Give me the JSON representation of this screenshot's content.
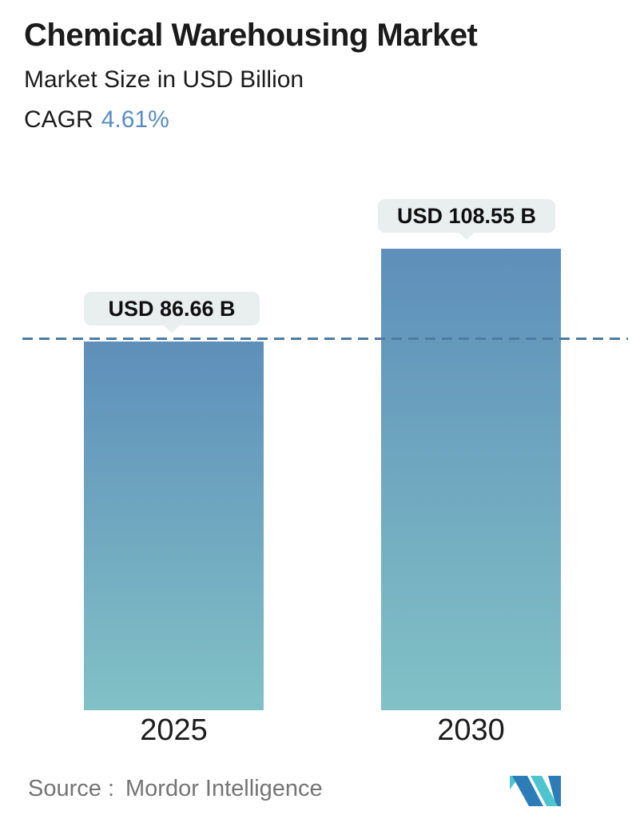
{
  "header": {
    "title": "Chemical Warehousing Market",
    "subtitle": "Market Size in USD Billion",
    "cagr_label": "CAGR",
    "cagr_value": "4.61%"
  },
  "chart_data": {
    "type": "bar",
    "categories": [
      "2025",
      "2030"
    ],
    "values": [
      86.66,
      108.55
    ],
    "value_labels": [
      "USD 86.66 B",
      "USD 108.55 B"
    ],
    "title": "Chemical Warehousing Market",
    "ylabel": "Market Size in USD Billion",
    "cagr_percent": 4.61,
    "baseline_value": 86.66,
    "baseline_style": "horizontal dashed line at 2025 bar top",
    "legend": false,
    "grid": false,
    "bar_gradient_top": "#5e8fba",
    "bar_gradient_bottom": "#81c1c6",
    "dashed_line_color": "#4c7ca3"
  },
  "footer": {
    "source_label": "Source :",
    "source_value": "Mordor Intelligence",
    "logo": "mordor-intelligence-logo",
    "logo_blue": "#2c7cb8",
    "logo_teal": "#4ec5ce"
  },
  "colors": {
    "accent_blue": "#5a8cc4",
    "callout_bg": "#e8efee",
    "text_dark": "#1b1b1b",
    "text_gray": "#747474",
    "background": "#ffffff"
  }
}
